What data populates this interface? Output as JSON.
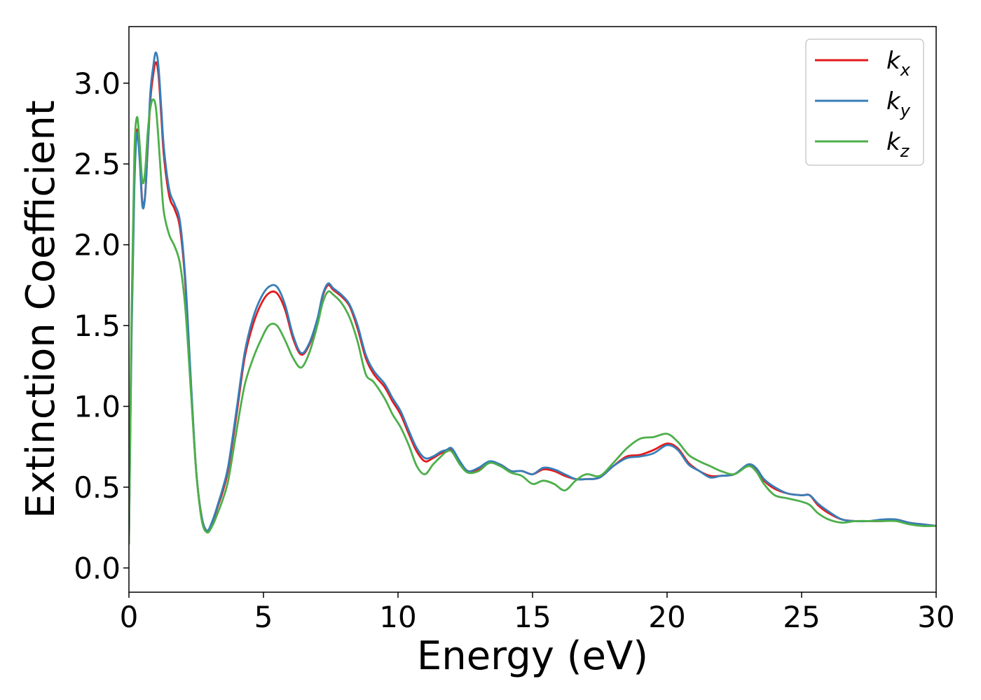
{
  "chart_data": {
    "type": "line",
    "xlabel": "Energy (eV)",
    "ylabel": "Extinction Coefficient",
    "xlim": [
      0,
      30
    ],
    "ylim": [
      -0.15,
      3.35
    ],
    "xticks": [
      0,
      5,
      10,
      15,
      20,
      25,
      30
    ],
    "yticks": [
      0.0,
      0.5,
      1.0,
      1.5,
      2.0,
      2.5,
      3.0
    ],
    "xtick_labels": [
      "0",
      "5",
      "10",
      "15",
      "20",
      "25",
      "30"
    ],
    "ytick_labels": [
      "0.0",
      "0.5",
      "1.0",
      "1.5",
      "2.0",
      "2.5",
      "3.0"
    ],
    "grid": false,
    "legend_position": "top-right",
    "series": [
      {
        "name": "k_x",
        "label_base": "k",
        "label_sub": "x",
        "color": "#e41a1c",
        "points": [
          [
            0,
            0.15
          ],
          [
            0.1,
            1.5
          ],
          [
            0.2,
            2.4
          ],
          [
            0.3,
            2.71
          ],
          [
            0.4,
            2.55
          ],
          [
            0.5,
            2.26
          ],
          [
            0.6,
            2.3
          ],
          [
            0.7,
            2.6
          ],
          [
            0.8,
            2.9
          ],
          [
            0.9,
            3.05
          ],
          [
            1.0,
            3.13
          ],
          [
            1.1,
            3.05
          ],
          [
            1.2,
            2.8
          ],
          [
            1.3,
            2.55
          ],
          [
            1.5,
            2.3
          ],
          [
            1.7,
            2.22
          ],
          [
            1.9,
            2.1
          ],
          [
            2.1,
            1.75
          ],
          [
            2.3,
            1.15
          ],
          [
            2.5,
            0.6
          ],
          [
            2.7,
            0.32
          ],
          [
            2.9,
            0.23
          ],
          [
            3.1,
            0.28
          ],
          [
            3.3,
            0.38
          ],
          [
            3.5,
            0.48
          ],
          [
            3.7,
            0.62
          ],
          [
            4.0,
            0.95
          ],
          [
            4.3,
            1.3
          ],
          [
            4.6,
            1.5
          ],
          [
            4.9,
            1.63
          ],
          [
            5.2,
            1.7
          ],
          [
            5.5,
            1.7
          ],
          [
            5.8,
            1.6
          ],
          [
            6.1,
            1.42
          ],
          [
            6.4,
            1.32
          ],
          [
            6.7,
            1.38
          ],
          [
            7.0,
            1.53
          ],
          [
            7.2,
            1.68
          ],
          [
            7.4,
            1.75
          ],
          [
            7.6,
            1.72
          ],
          [
            7.9,
            1.68
          ],
          [
            8.2,
            1.62
          ],
          [
            8.5,
            1.48
          ],
          [
            8.8,
            1.3
          ],
          [
            9.1,
            1.2
          ],
          [
            9.5,
            1.12
          ],
          [
            9.8,
            1.03
          ],
          [
            10.1,
            0.95
          ],
          [
            10.4,
            0.83
          ],
          [
            10.7,
            0.72
          ],
          [
            11.0,
            0.66
          ],
          [
            11.3,
            0.68
          ],
          [
            11.6,
            0.71
          ],
          [
            11.8,
            0.72
          ],
          [
            12.0,
            0.73
          ],
          [
            12.3,
            0.65
          ],
          [
            12.6,
            0.6
          ],
          [
            13.0,
            0.61
          ],
          [
            13.4,
            0.65
          ],
          [
            13.8,
            0.64
          ],
          [
            14.2,
            0.6
          ],
          [
            14.6,
            0.6
          ],
          [
            15.0,
            0.58
          ],
          [
            15.4,
            0.61
          ],
          [
            15.8,
            0.6
          ],
          [
            16.2,
            0.57
          ],
          [
            16.6,
            0.55
          ],
          [
            17.0,
            0.55
          ],
          [
            17.5,
            0.56
          ],
          [
            18.0,
            0.63
          ],
          [
            18.5,
            0.69
          ],
          [
            19.0,
            0.7
          ],
          [
            19.5,
            0.73
          ],
          [
            20.0,
            0.77
          ],
          [
            20.4,
            0.74
          ],
          [
            20.8,
            0.65
          ],
          [
            21.2,
            0.6
          ],
          [
            21.6,
            0.57
          ],
          [
            22.0,
            0.57
          ],
          [
            22.5,
            0.58
          ],
          [
            23.0,
            0.63
          ],
          [
            23.3,
            0.61
          ],
          [
            23.6,
            0.54
          ],
          [
            24.0,
            0.49
          ],
          [
            24.5,
            0.46
          ],
          [
            25.0,
            0.45
          ],
          [
            25.3,
            0.45
          ],
          [
            25.6,
            0.39
          ],
          [
            26.0,
            0.34
          ],
          [
            26.5,
            0.3
          ],
          [
            27.0,
            0.29
          ],
          [
            27.5,
            0.29
          ],
          [
            28.0,
            0.29
          ],
          [
            28.5,
            0.3
          ],
          [
            29.0,
            0.28
          ],
          [
            29.5,
            0.27
          ],
          [
            30.0,
            0.26
          ]
        ]
      },
      {
        "name": "k_y",
        "label_base": "k",
        "label_sub": "y",
        "color": "#377eb8",
        "points": [
          [
            0,
            0.15
          ],
          [
            0.1,
            1.45
          ],
          [
            0.2,
            2.35
          ],
          [
            0.3,
            2.69
          ],
          [
            0.4,
            2.52
          ],
          [
            0.5,
            2.24
          ],
          [
            0.6,
            2.3
          ],
          [
            0.7,
            2.62
          ],
          [
            0.8,
            2.95
          ],
          [
            0.9,
            3.1
          ],
          [
            1.0,
            3.19
          ],
          [
            1.1,
            3.1
          ],
          [
            1.2,
            2.85
          ],
          [
            1.3,
            2.6
          ],
          [
            1.5,
            2.34
          ],
          [
            1.7,
            2.25
          ],
          [
            1.9,
            2.14
          ],
          [
            2.1,
            1.78
          ],
          [
            2.3,
            1.17
          ],
          [
            2.5,
            0.6
          ],
          [
            2.7,
            0.32
          ],
          [
            2.9,
            0.23
          ],
          [
            3.1,
            0.29
          ],
          [
            3.3,
            0.39
          ],
          [
            3.5,
            0.5
          ],
          [
            3.7,
            0.64
          ],
          [
            4.0,
            0.98
          ],
          [
            4.3,
            1.33
          ],
          [
            4.6,
            1.54
          ],
          [
            4.9,
            1.67
          ],
          [
            5.2,
            1.74
          ],
          [
            5.5,
            1.74
          ],
          [
            5.8,
            1.63
          ],
          [
            6.1,
            1.44
          ],
          [
            6.4,
            1.33
          ],
          [
            6.7,
            1.39
          ],
          [
            7.0,
            1.54
          ],
          [
            7.2,
            1.69
          ],
          [
            7.4,
            1.76
          ],
          [
            7.6,
            1.73
          ],
          [
            7.9,
            1.69
          ],
          [
            8.2,
            1.63
          ],
          [
            8.5,
            1.5
          ],
          [
            8.8,
            1.32
          ],
          [
            9.1,
            1.22
          ],
          [
            9.5,
            1.14
          ],
          [
            9.8,
            1.05
          ],
          [
            10.1,
            0.97
          ],
          [
            10.4,
            0.85
          ],
          [
            10.7,
            0.74
          ],
          [
            11.0,
            0.68
          ],
          [
            11.3,
            0.69
          ],
          [
            11.6,
            0.72
          ],
          [
            11.8,
            0.73
          ],
          [
            12.0,
            0.74
          ],
          [
            12.3,
            0.66
          ],
          [
            12.6,
            0.6
          ],
          [
            13.0,
            0.62
          ],
          [
            13.4,
            0.66
          ],
          [
            13.8,
            0.64
          ],
          [
            14.2,
            0.6
          ],
          [
            14.6,
            0.6
          ],
          [
            15.0,
            0.58
          ],
          [
            15.4,
            0.62
          ],
          [
            15.8,
            0.61
          ],
          [
            16.2,
            0.58
          ],
          [
            16.6,
            0.55
          ],
          [
            17.0,
            0.55
          ],
          [
            17.5,
            0.56
          ],
          [
            18.0,
            0.63
          ],
          [
            18.5,
            0.68
          ],
          [
            19.0,
            0.69
          ],
          [
            19.5,
            0.71
          ],
          [
            20.0,
            0.76
          ],
          [
            20.4,
            0.73
          ],
          [
            20.8,
            0.64
          ],
          [
            21.2,
            0.6
          ],
          [
            21.6,
            0.56
          ],
          [
            22.0,
            0.57
          ],
          [
            22.5,
            0.58
          ],
          [
            23.0,
            0.64
          ],
          [
            23.3,
            0.62
          ],
          [
            23.6,
            0.55
          ],
          [
            24.0,
            0.5
          ],
          [
            24.5,
            0.46
          ],
          [
            25.0,
            0.45
          ],
          [
            25.3,
            0.45
          ],
          [
            25.6,
            0.4
          ],
          [
            26.0,
            0.35
          ],
          [
            26.5,
            0.3
          ],
          [
            27.0,
            0.29
          ],
          [
            27.5,
            0.29
          ],
          [
            28.0,
            0.3
          ],
          [
            28.5,
            0.3
          ],
          [
            29.0,
            0.28
          ],
          [
            29.5,
            0.27
          ],
          [
            30.0,
            0.26
          ]
        ]
      },
      {
        "name": "k_z",
        "label_base": "k",
        "label_sub": "z",
        "color": "#4daf4a",
        "points": [
          [
            0,
            0.15
          ],
          [
            0.1,
            1.6
          ],
          [
            0.2,
            2.55
          ],
          [
            0.3,
            2.79
          ],
          [
            0.4,
            2.62
          ],
          [
            0.5,
            2.39
          ],
          [
            0.6,
            2.45
          ],
          [
            0.7,
            2.7
          ],
          [
            0.8,
            2.85
          ],
          [
            0.9,
            2.9
          ],
          [
            1.0,
            2.85
          ],
          [
            1.1,
            2.65
          ],
          [
            1.2,
            2.4
          ],
          [
            1.3,
            2.2
          ],
          [
            1.5,
            2.06
          ],
          [
            1.7,
            1.99
          ],
          [
            1.9,
            1.88
          ],
          [
            2.1,
            1.6
          ],
          [
            2.3,
            1.1
          ],
          [
            2.5,
            0.6
          ],
          [
            2.7,
            0.3
          ],
          [
            2.9,
            0.22
          ],
          [
            3.1,
            0.26
          ],
          [
            3.3,
            0.34
          ],
          [
            3.5,
            0.43
          ],
          [
            3.7,
            0.55
          ],
          [
            4.0,
            0.85
          ],
          [
            4.3,
            1.13
          ],
          [
            4.6,
            1.29
          ],
          [
            4.9,
            1.41
          ],
          [
            5.2,
            1.5
          ],
          [
            5.5,
            1.5
          ],
          [
            5.8,
            1.41
          ],
          [
            6.1,
            1.3
          ],
          [
            6.4,
            1.24
          ],
          [
            6.7,
            1.33
          ],
          [
            7.0,
            1.5
          ],
          [
            7.2,
            1.64
          ],
          [
            7.4,
            1.71
          ],
          [
            7.6,
            1.69
          ],
          [
            7.9,
            1.64
          ],
          [
            8.2,
            1.55
          ],
          [
            8.5,
            1.4
          ],
          [
            8.8,
            1.2
          ],
          [
            9.1,
            1.15
          ],
          [
            9.5,
            1.05
          ],
          [
            9.8,
            0.95
          ],
          [
            10.1,
            0.87
          ],
          [
            10.4,
            0.76
          ],
          [
            10.7,
            0.63
          ],
          [
            11.0,
            0.58
          ],
          [
            11.3,
            0.64
          ],
          [
            11.6,
            0.69
          ],
          [
            11.8,
            0.72
          ],
          [
            12.0,
            0.72
          ],
          [
            12.3,
            0.64
          ],
          [
            12.6,
            0.59
          ],
          [
            13.0,
            0.6
          ],
          [
            13.4,
            0.65
          ],
          [
            13.8,
            0.63
          ],
          [
            14.2,
            0.59
          ],
          [
            14.6,
            0.57
          ],
          [
            15.0,
            0.52
          ],
          [
            15.4,
            0.54
          ],
          [
            15.8,
            0.52
          ],
          [
            16.2,
            0.48
          ],
          [
            16.6,
            0.54
          ],
          [
            17.0,
            0.58
          ],
          [
            17.5,
            0.57
          ],
          [
            18.0,
            0.65
          ],
          [
            18.5,
            0.74
          ],
          [
            19.0,
            0.8
          ],
          [
            19.5,
            0.81
          ],
          [
            20.0,
            0.83
          ],
          [
            20.4,
            0.78
          ],
          [
            20.8,
            0.7
          ],
          [
            21.2,
            0.66
          ],
          [
            21.6,
            0.63
          ],
          [
            22.0,
            0.6
          ],
          [
            22.5,
            0.58
          ],
          [
            23.0,
            0.63
          ],
          [
            23.3,
            0.6
          ],
          [
            23.6,
            0.52
          ],
          [
            24.0,
            0.45
          ],
          [
            24.5,
            0.43
          ],
          [
            25.0,
            0.41
          ],
          [
            25.3,
            0.39
          ],
          [
            25.6,
            0.34
          ],
          [
            26.0,
            0.3
          ],
          [
            26.5,
            0.28
          ],
          [
            27.0,
            0.29
          ],
          [
            27.5,
            0.29
          ],
          [
            28.0,
            0.29
          ],
          [
            28.5,
            0.29
          ],
          [
            29.0,
            0.27
          ],
          [
            29.5,
            0.26
          ],
          [
            30.0,
            0.26
          ]
        ]
      }
    ]
  }
}
